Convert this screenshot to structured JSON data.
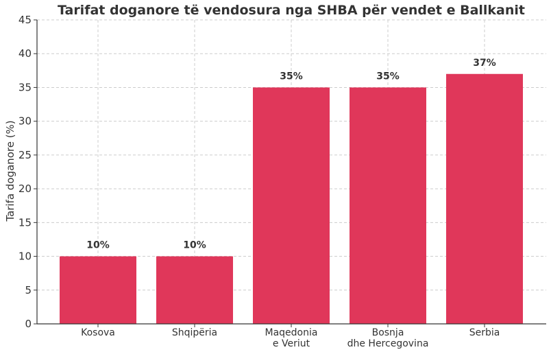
{
  "chart_data": {
    "type": "bar",
    "title": "Tarifat doganore të vendosura nga SHBA për vendet e Ballkanit",
    "xlabel": "",
    "ylabel": "Tarifa doganore (%)",
    "ylim": [
      0,
      45
    ],
    "yticks": [
      "0",
      "5",
      "10",
      "15",
      "20",
      "25",
      "30",
      "35",
      "40",
      "45"
    ],
    "categories": [
      [
        "Kosova"
      ],
      [
        "Shqipëria"
      ],
      [
        "Maqedonia",
        "e Veriut"
      ],
      [
        "Bosnja",
        "dhe Hercegovina"
      ],
      [
        "Serbia"
      ]
    ],
    "values": [
      10,
      10,
      35,
      35,
      37
    ],
    "data_labels": [
      "10%",
      "10%",
      "35%",
      "35%",
      "37%"
    ],
    "bar_color": "#e0375a",
    "grid": true
  }
}
